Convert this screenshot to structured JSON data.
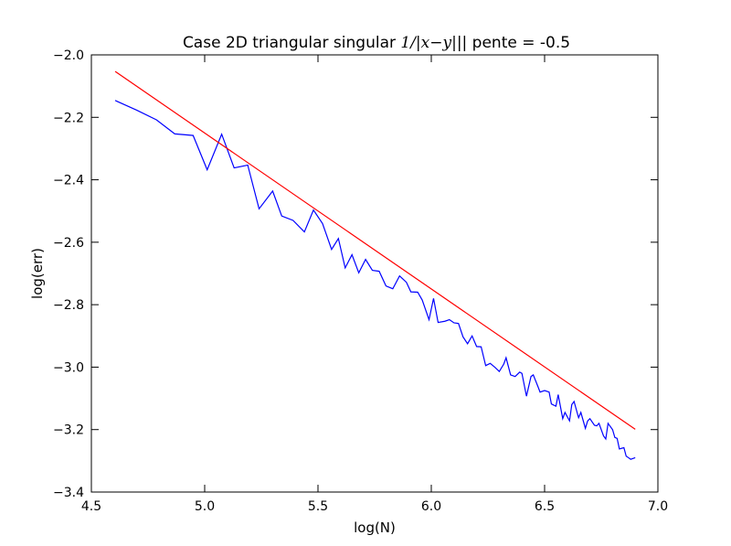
{
  "chart_data": {
    "type": "line",
    "title": "Case 2D triangular singular",
    "title_math": "1/|x−y|",
    "title_suffix": "|| pente = -0.5",
    "xlabel": "log(N)",
    "ylabel": "log(err)",
    "xlim": [
      4.5,
      7.0
    ],
    "ylim": [
      -3.4,
      -2.0
    ],
    "xticks": [
      "4.5",
      "5.0",
      "5.5",
      "6.0",
      "6.5",
      "7.0"
    ],
    "yticks": [
      "−2.0",
      "−2.2",
      "−2.4",
      "−2.6",
      "−2.8",
      "−3.0",
      "−3.2",
      "−3.4"
    ],
    "xtick_values": [
      4.5,
      5.0,
      5.5,
      6.0,
      6.5,
      7.0
    ],
    "ytick_values": [
      -2.0,
      -2.2,
      -2.4,
      -2.6,
      -2.8,
      -3.0,
      -3.2,
      -3.4
    ],
    "grid": false,
    "series": [
      {
        "color": "#0000ff",
        "x": [
          4.605,
          4.7,
          4.787,
          4.868,
          4.949,
          5.011,
          5.075,
          5.13,
          5.19,
          5.24,
          5.3,
          5.34,
          5.39,
          5.44,
          5.48,
          5.52,
          5.56,
          5.59,
          5.62,
          5.65,
          5.68,
          5.71,
          5.74,
          5.77,
          5.8,
          5.83,
          5.86,
          5.89,
          5.91,
          5.94,
          5.96,
          5.99,
          6.01,
          6.03,
          6.06,
          6.08,
          6.1,
          6.12,
          6.14,
          6.16,
          6.18,
          6.2,
          6.22,
          6.24,
          6.26,
          6.28,
          6.3,
          6.32,
          6.33,
          6.35,
          6.37,
          6.39,
          6.4,
          6.42,
          6.44,
          6.45,
          6.47,
          6.48,
          6.5,
          6.52,
          6.53,
          6.55,
          6.56,
          6.58,
          6.59,
          6.61,
          6.62,
          6.63,
          6.65,
          6.66,
          6.68,
          6.69,
          6.7,
          6.72,
          6.73,
          6.74,
          6.76,
          6.77,
          6.78,
          6.8,
          6.81,
          6.82,
          6.83,
          6.85,
          6.86,
          6.87,
          6.88,
          6.9
        ],
        "y": [
          -2.146,
          -2.177,
          -2.208,
          -2.253,
          -2.258,
          -2.368,
          -2.254,
          -2.362,
          -2.353,
          -2.493,
          -2.436,
          -2.516,
          -2.53,
          -2.567,
          -2.497,
          -2.54,
          -2.623,
          -2.588,
          -2.682,
          -2.64,
          -2.698,
          -2.655,
          -2.69,
          -2.693,
          -2.74,
          -2.749,
          -2.708,
          -2.728,
          -2.759,
          -2.76,
          -2.785,
          -2.848,
          -2.78,
          -2.857,
          -2.853,
          -2.848,
          -2.858,
          -2.86,
          -2.903,
          -2.925,
          -2.9,
          -2.934,
          -2.935,
          -2.995,
          -2.988,
          -3.0,
          -3.014,
          -2.99,
          -2.97,
          -3.025,
          -3.03,
          -3.016,
          -3.02,
          -3.093,
          -3.03,
          -3.025,
          -3.061,
          -3.08,
          -3.075,
          -3.08,
          -3.118,
          -3.125,
          -3.088,
          -3.165,
          -3.145,
          -3.172,
          -3.12,
          -3.11,
          -3.162,
          -3.145,
          -3.196,
          -3.172,
          -3.165,
          -3.186,
          -3.188,
          -3.18,
          -3.22,
          -3.23,
          -3.18,
          -3.2,
          -3.225,
          -3.228,
          -3.262,
          -3.258,
          -3.285,
          -3.29,
          -3.295,
          -3.29
        ]
      },
      {
        "color": "#ff0000",
        "x": [
          4.605,
          6.9
        ],
        "y": [
          -2.053,
          -3.199
        ]
      }
    ]
  }
}
